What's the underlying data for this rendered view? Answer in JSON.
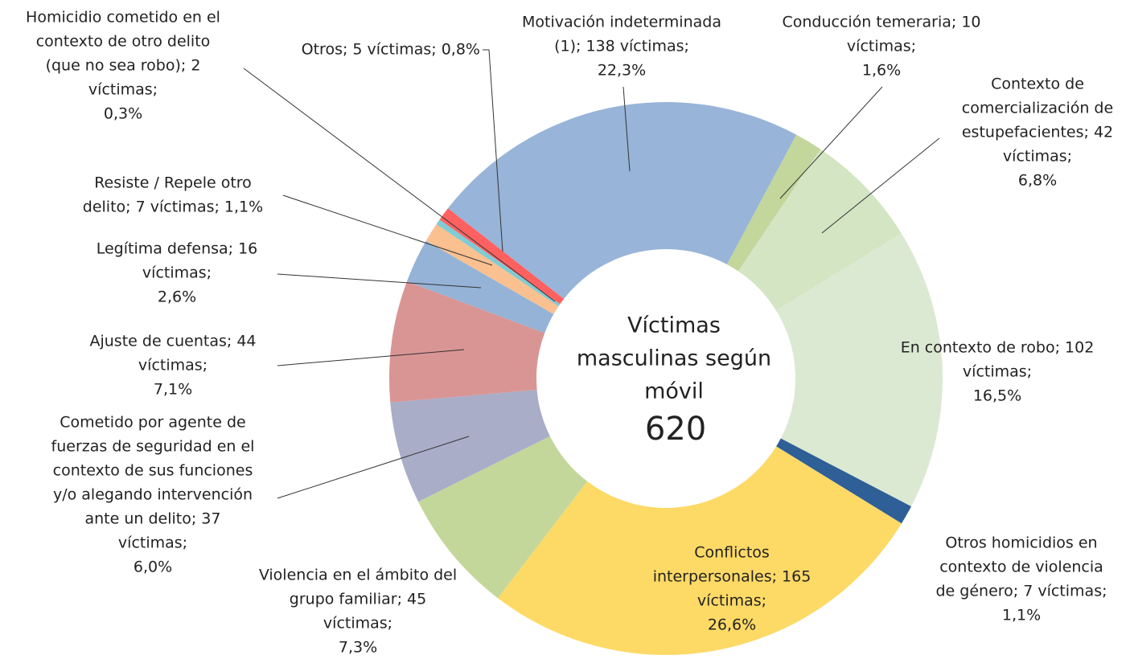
{
  "chart_data": {
    "type": "donut",
    "center_title": [
      "Víctimas",
      "masculinas según",
      "móvil"
    ],
    "total": 620,
    "labels": [
      [
        "Motivación indeterminada",
        "(1); 138 víctimas;",
        "22,3%"
      ],
      [
        "Conducción temeraria; 10",
        "víctimas;",
        "1,6%"
      ],
      [
        "Contexto de",
        "comercialización de",
        "estupefacientes; 42",
        "víctimas;",
        "6,8%"
      ],
      [
        "En contexto de robo; 102",
        "víctimas;",
        "16,5%"
      ],
      [
        "Otros homicidios en",
        "contexto de violencia",
        "de género; 7 víctimas;",
        "1,1%"
      ],
      [
        "Conflictos",
        "interpersonales; 165",
        "víctimas;",
        "26,6%"
      ],
      [
        "Violencia en el ámbito del",
        "grupo familiar; 45",
        "víctimas;",
        "7,3%"
      ],
      [
        "Cometido por agente de",
        "fuerzas de seguridad en el",
        "contexto de sus funciones",
        "y/o alegando intervención",
        "ante un delito; 37",
        "víctimas;",
        "6,0%"
      ],
      [
        "Ajuste de cuentas; 44",
        "víctimas;",
        "7,1%"
      ],
      [
        "Legítima defensa; 16",
        "víctimas;",
        "2,6%"
      ],
      [
        "Resiste / Repele otro",
        "delito; 7 víctimas; 1,1%"
      ],
      [
        "Homicidio cometido en el",
        "contexto de otro delito",
        "(que no sea robo); 2",
        "víctimas;",
        "0,3%"
      ],
      [
        "Otros; 5 víctimas; 0,8%"
      ]
    ],
    "values": [
      138,
      10,
      42,
      102,
      7,
      165,
      45,
      37,
      44,
      16,
      7,
      2,
      5
    ],
    "colors": [
      "#98b4d8",
      "#c3d69b",
      "#d3e5c3",
      "#dbe9d2",
      "#2e5f96",
      "#fdd966",
      "#c4d79b",
      "#a9adc8",
      "#d99594",
      "#95b3d7",
      "#fac090",
      "#7fcbd6",
      "#ff6161"
    ]
  }
}
